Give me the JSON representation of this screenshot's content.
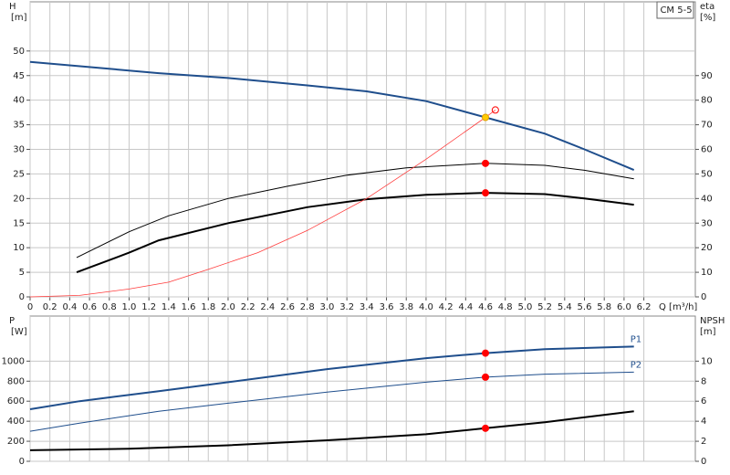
{
  "chart_data": [
    {
      "type": "line",
      "title": "CM 5-5",
      "y_label": [
        "H",
        "[m]"
      ],
      "y2_label": [
        "eta",
        "[%]"
      ],
      "x_label": "Q [m³/h]",
      "xlim": [
        0,
        6.72
      ],
      "xticks": [
        0,
        0.2,
        0.4,
        0.6,
        0.8,
        {
          "value": 1,
          "label": "1.0"
        },
        1.2,
        1.4,
        1.6,
        1.8,
        {
          "value": 2,
          "label": "2.0"
        },
        2.2,
        2.4,
        2.6,
        2.8,
        {
          "value": 3,
          "label": "3.0"
        },
        3.2,
        3.4,
        3.6,
        3.8,
        {
          "value": 4,
          "label": "4.0"
        },
        4.2,
        4.4,
        4.6,
        4.8,
        {
          "value": 5,
          "label": "5.0"
        },
        5.2,
        5.4,
        5.6,
        5.8,
        {
          "value": 6,
          "label": "6.0"
        },
        6.2
      ],
      "ylim": [
        0,
        60
      ],
      "yticks": [
        0,
        5,
        10,
        15,
        20,
        25,
        30,
        35,
        40,
        45,
        50
      ],
      "y2lim": [
        0,
        120
      ],
      "y2ticks": [
        0,
        10,
        20,
        30,
        40,
        50,
        60,
        70,
        80,
        90
      ],
      "grid": true,
      "series": [
        {
          "color": "#1f4e8c",
          "width": 2,
          "x": [
            0,
            1.3,
            2,
            2.8,
            3.4,
            4,
            4.6,
            5.2,
            5.6,
            6.1
          ],
          "values": [
            47.8,
            45.5,
            44.5,
            43,
            41.8,
            39.8,
            36.5,
            33.2,
            30,
            25.8
          ]
        },
        {
          "color": "#000000",
          "width": 1,
          "axis": "y2",
          "x": [
            0.47,
            1,
            1.4,
            2,
            2.6,
            3.2,
            3.8,
            4.6,
            5.2,
            5.6,
            6.1
          ],
          "values": [
            16,
            26.5,
            33,
            40,
            45,
            49.5,
            52.5,
            54.3,
            53.5,
            51.5,
            48
          ]
        },
        {
          "color": "#000000",
          "width": 2,
          "axis": "y2",
          "x": [
            0.47,
            1,
            1.3,
            2,
            2.8,
            3.4,
            4,
            4.6,
            5.2,
            5.6,
            6.1
          ],
          "values": [
            10,
            18,
            23,
            30,
            36.5,
            39.7,
            41.5,
            42.3,
            41.8,
            40,
            37.5
          ]
        },
        {
          "color": "#ff3b3b",
          "width": 0.8,
          "x": [
            0,
            0.5,
            1,
            1.4,
            1.8,
            2.3,
            2.8,
            3.4,
            4,
            4.6,
            4.7
          ],
          "values": [
            0,
            0.3,
            1.6,
            3,
            5.6,
            9,
            13.5,
            20,
            28,
            36.5,
            38
          ]
        }
      ],
      "markers": [
        {
          "x": 4.6,
          "y": 36.5,
          "color": "#ffcc00"
        },
        {
          "x": 4.7,
          "y": 38,
          "color": "#ff0000",
          "open": true
        },
        {
          "x": 4.6,
          "y": 54.3,
          "axis": "y2",
          "color": "#ff0000"
        },
        {
          "x": 4.6,
          "y": 42.3,
          "axis": "y2",
          "color": "#ff0000"
        }
      ]
    },
    {
      "type": "line",
      "y_label": [
        "P",
        "[W]"
      ],
      "y2_label": [
        "NPSH",
        "[m]"
      ],
      "xlim": [
        0,
        6.72
      ],
      "ylim": [
        0,
        1450
      ],
      "yticks": [
        0,
        200,
        400,
        600,
        800,
        1000
      ],
      "y2lim": [
        0,
        14.5
      ],
      "y2ticks": [
        0,
        2,
        4,
        6,
        8,
        10
      ],
      "grid": true,
      "series": [
        {
          "name": "P1",
          "color": "#1f4e8c",
          "width": 2,
          "x": [
            0,
            0.5,
            1.3,
            2,
            3,
            4,
            4.6,
            5.2,
            6.1
          ],
          "values": [
            520,
            600,
            700,
            790,
            920,
            1030,
            1080,
            1120,
            1145
          ]
        },
        {
          "name": "P2",
          "color": "#1f4e8c",
          "width": 1,
          "x": [
            0,
            0.5,
            1.3,
            2,
            3,
            4,
            4.6,
            5.2,
            6.1
          ],
          "values": [
            300,
            380,
            500,
            580,
            690,
            790,
            840,
            870,
            890
          ]
        },
        {
          "color": "#000000",
          "width": 2,
          "axis": "y2",
          "x": [
            0,
            1,
            2,
            3,
            4,
            4.6,
            5.2,
            6.1
          ],
          "values": [
            1.1,
            1.25,
            1.6,
            2.1,
            2.7,
            3.3,
            3.9,
            5
          ]
        }
      ],
      "markers": [
        {
          "x": 4.6,
          "y": 1080,
          "color": "#ff0000"
        },
        {
          "x": 4.6,
          "y": 840,
          "color": "#ff0000"
        },
        {
          "x": 4.6,
          "y": 3.3,
          "axis": "y2",
          "color": "#ff0000"
        }
      ]
    }
  ]
}
